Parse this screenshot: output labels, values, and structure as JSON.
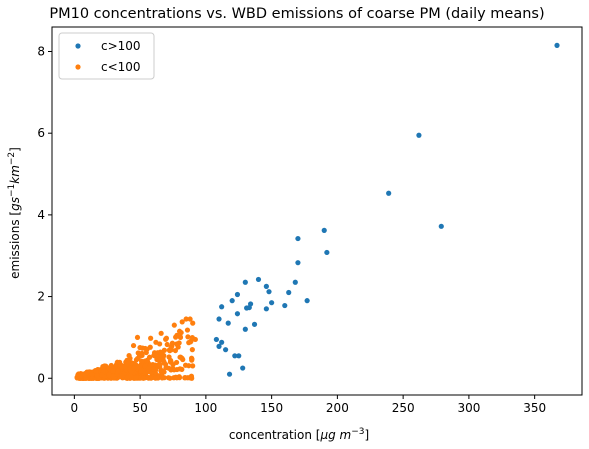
{
  "chart_data": {
    "type": "scatter",
    "title": "PM10 concentrations vs. WBD emissions of coarse PM (daily means)",
    "xlabel_parts": [
      "concentration [",
      "μg m",
      "−3",
      "]"
    ],
    "ylabel_parts": [
      "emissions [",
      "gs",
      "−1",
      "km",
      "−2",
      "]"
    ],
    "xlim": [
      -17,
      386
    ],
    "ylim": [
      -0.41,
      8.6
    ],
    "xticks": [
      0,
      50,
      100,
      150,
      200,
      250,
      300,
      350
    ],
    "yticks": [
      0,
      2,
      4,
      6,
      8
    ],
    "legend_position": "top-left",
    "grid": false,
    "series": [
      {
        "name": "c>100",
        "color": "#1f77b4",
        "points": [
          [
            367,
            8.15
          ],
          [
            262,
            5.95
          ],
          [
            239,
            4.53
          ],
          [
            279,
            3.72
          ],
          [
            190,
            3.62
          ],
          [
            192,
            3.08
          ],
          [
            170,
            3.42
          ],
          [
            170,
            2.83
          ],
          [
            168,
            2.35
          ],
          [
            177,
            1.9
          ],
          [
            163,
            2.1
          ],
          [
            160,
            1.78
          ],
          [
            150,
            1.85
          ],
          [
            148,
            2.12
          ],
          [
            146,
            2.25
          ],
          [
            146,
            1.7
          ],
          [
            140,
            2.42
          ],
          [
            137,
            1.32
          ],
          [
            134,
            1.82
          ],
          [
            131,
            1.72
          ],
          [
            130,
            2.35
          ],
          [
            130,
            1.2
          ],
          [
            124,
            2.05
          ],
          [
            124,
            1.58
          ],
          [
            120,
            1.9
          ],
          [
            117,
            1.35
          ],
          [
            115,
            0.7
          ],
          [
            112,
            1.75
          ],
          [
            110,
            1.45
          ],
          [
            110,
            0.78
          ],
          [
            108,
            0.95
          ],
          [
            112,
            0.88
          ],
          [
            122,
            0.55
          ],
          [
            125,
            0.55
          ],
          [
            128,
            0.25
          ],
          [
            118,
            0.1
          ],
          [
            133,
            1.73
          ]
        ]
      },
      {
        "name": "c<100",
        "color": "#ff7f0e",
        "clusters": [
          {
            "x": [
              2,
              18
            ],
            "y": [
              0.0,
              0.1
            ],
            "n": 140
          },
          {
            "x": [
              2,
              30
            ],
            "y": [
              0.0,
              0.28
            ],
            "n": 180
          },
          {
            "x": [
              8,
              55
            ],
            "y": [
              0.0,
              0.45
            ],
            "n": 200
          },
          {
            "x": [
              20,
              70
            ],
            "y": [
              0.05,
              0.75
            ],
            "n": 120
          },
          {
            "x": [
              35,
              90
            ],
            "y": [
              0.2,
              1.25
            ],
            "n": 90
          },
          {
            "x": [
              40,
              90
            ],
            "y": [
              0.0,
              0.06
            ],
            "n": 45
          }
        ],
        "extra_points": [
          [
            48,
            1.0
          ],
          [
            62,
            0.88
          ],
          [
            70,
            0.98
          ],
          [
            78,
            1.05
          ],
          [
            82,
            1.38
          ],
          [
            85,
            1.45
          ],
          [
            88,
            1.45
          ],
          [
            90,
            1.35
          ],
          [
            86,
            1.18
          ],
          [
            76,
            1.3
          ],
          [
            80,
            1.15
          ],
          [
            58,
            0.98
          ],
          [
            45,
            0.8
          ],
          [
            92,
            0.95
          ],
          [
            66,
            1.1
          ]
        ]
      }
    ]
  }
}
